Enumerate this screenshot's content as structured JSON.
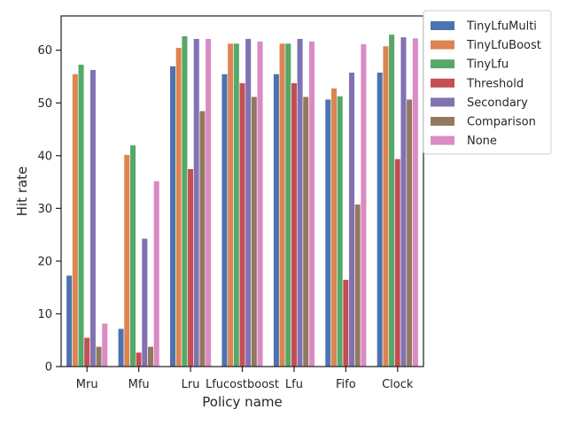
{
  "chart_data": {
    "type": "bar",
    "title": "",
    "xlabel": "Policy name",
    "ylabel": "Hit rate",
    "ylim": [
      0,
      66.5
    ],
    "yticks": [
      0,
      10,
      20,
      30,
      40,
      50,
      60
    ],
    "grid": false,
    "legend_position": "outside-top-right",
    "categories": [
      "Mru",
      "Mfu",
      "Lru",
      "Lfucostboost",
      "Lfu",
      "Fifo",
      "Clock"
    ],
    "series": [
      {
        "name": "TinyLfuMulti",
        "color": "#4c72b0",
        "values": [
          17.3,
          7.2,
          57.0,
          55.5,
          55.5,
          50.7,
          55.8
        ]
      },
      {
        "name": "TinyLfuBoost",
        "color": "#dd8452",
        "values": [
          55.5,
          40.2,
          60.5,
          61.3,
          61.3,
          52.8,
          60.8
        ]
      },
      {
        "name": "TinyLfu",
        "color": "#55a868",
        "values": [
          57.3,
          42.0,
          62.7,
          61.3,
          61.3,
          51.3,
          63.0
        ]
      },
      {
        "name": "Threshold",
        "color": "#c44e52",
        "values": [
          5.5,
          2.7,
          37.5,
          53.8,
          53.8,
          16.5,
          39.4
        ]
      },
      {
        "name": "Secondary",
        "color": "#8172b3",
        "values": [
          56.3,
          24.3,
          62.2,
          62.2,
          62.2,
          55.8,
          62.5
        ]
      },
      {
        "name": "Comparison",
        "color": "#937860",
        "values": [
          3.8,
          3.8,
          48.5,
          51.2,
          51.2,
          30.8,
          50.7
        ]
      },
      {
        "name": "None",
        "color": "#da8bc3",
        "values": [
          8.2,
          35.2,
          62.2,
          61.7,
          61.7,
          61.2,
          62.3
        ]
      }
    ]
  }
}
